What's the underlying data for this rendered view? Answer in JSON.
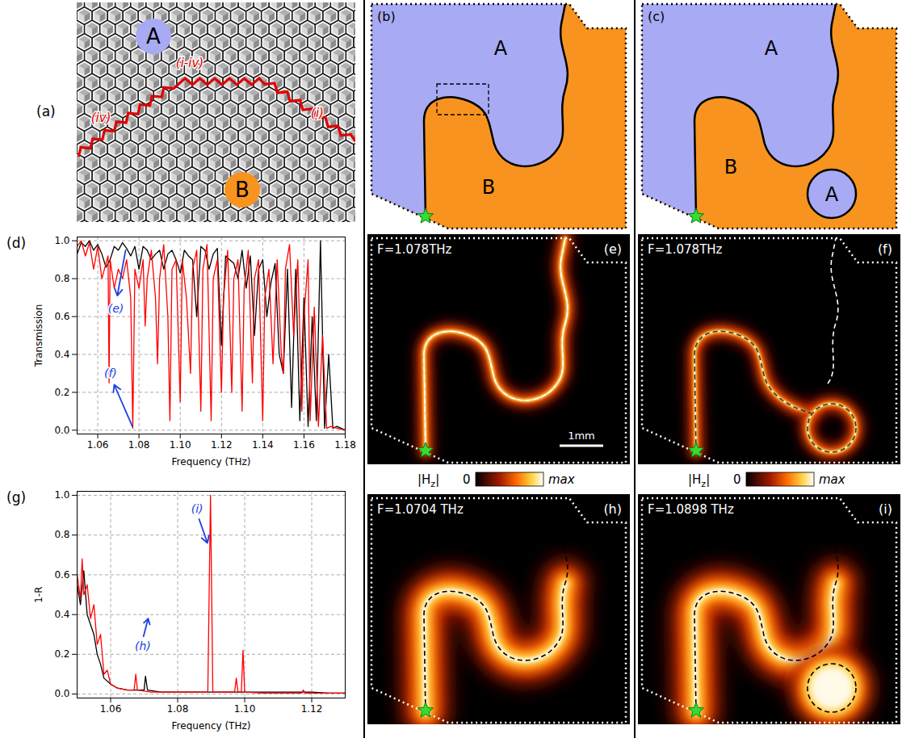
{
  "figure": {
    "a": {
      "letter": "(a)",
      "regions": [
        "A",
        "B"
      ],
      "path_labels": [
        "(iv)",
        "(i-iv)",
        "(i)"
      ]
    },
    "b": {
      "letter": "(b)",
      "regions": [
        "A",
        "B"
      ]
    },
    "c": {
      "letter": "(c)",
      "regions": [
        "A",
        "B",
        "A"
      ]
    },
    "e": {
      "letter": "(e)",
      "frequency_label": "F=1.078THz",
      "scale_bar": "1mm"
    },
    "f": {
      "letter": "(f)",
      "frequency_label": "F=1.078THz"
    },
    "h": {
      "letter": "(h)",
      "frequency_label": "F=1.0704 THz"
    },
    "i": {
      "letter": "(i)",
      "frequency_label": "F=1.0898 THz"
    },
    "colorbar": {
      "label": "|H",
      "subscript": "z",
      "label_end": "|",
      "min_label": "0",
      "max_label": "max"
    }
  },
  "chart_data": [
    {
      "letter": "(d)",
      "type": "line",
      "xlabel": "Frequency (THz)",
      "ylabel": "Transmission",
      "xlim": [
        1.05,
        1.18
      ],
      "xticks": [
        1.06,
        1.08,
        {
          "value": 1.1,
          "label": "1.10"
        },
        1.12,
        1.14,
        1.16,
        1.18
      ],
      "ylim": [
        -0.02,
        1.02
      ],
      "yticks": [
        {
          "value": 0,
          "label": "0.0"
        },
        {
          "value": 0.2,
          "label": "0.2"
        },
        {
          "value": 0.4,
          "label": "0.4"
        },
        {
          "value": 0.6,
          "label": "0.6"
        },
        {
          "value": 0.8,
          "label": "0.8"
        },
        {
          "value": 1,
          "label": "1.0"
        }
      ],
      "grid": true,
      "series": [
        {
          "color": "#000000",
          "x": [
            1.05,
            1.052,
            1.054,
            1.056,
            1.058,
            1.06,
            1.062,
            1.064,
            1.066,
            1.068,
            1.07,
            1.072,
            1.074,
            1.076,
            1.078,
            1.08,
            1.082,
            1.084,
            1.086,
            1.088,
            1.09,
            1.092,
            1.094,
            1.096,
            1.098,
            1.1,
            1.102,
            1.104,
            1.106,
            1.108,
            1.11,
            1.112,
            1.114,
            1.116,
            1.118,
            1.12,
            1.122,
            1.124,
            1.126,
            1.128,
            1.13,
            1.132,
            1.134,
            1.136,
            1.138,
            1.14,
            1.142,
            1.144,
            1.146,
            1.148,
            1.15,
            1.152,
            1.154,
            1.156,
            1.158,
            1.16,
            1.162,
            1.164,
            1.166,
            1.168,
            1.17,
            1.172,
            1.174,
            1.176,
            1.178,
            1.18
          ],
          "values": [
            0.93,
            0.99,
            0.97,
            1.0,
            0.95,
            0.98,
            0.93,
            0.86,
            0.9,
            0.97,
            0.95,
            0.99,
            0.96,
            0.92,
            0.97,
            0.85,
            0.97,
            0.95,
            0.9,
            0.93,
            0.95,
            0.85,
            0.93,
            0.95,
            0.9,
            0.83,
            0.95,
            0.92,
            0.9,
            0.6,
            0.97,
            0.95,
            0.85,
            0.93,
            0.96,
            0.45,
            0.92,
            0.9,
            0.88,
            0.8,
            0.95,
            0.75,
            0.92,
            0.5,
            0.85,
            0.9,
            0.6,
            0.78,
            0.88,
            0.4,
            0.3,
            0.85,
            0.12,
            0.85,
            0.05,
            0.7,
            0.02,
            0.6,
            0.05,
            1.0,
            0.01,
            0.4,
            0.01,
            0.02,
            0.01,
            0.0
          ]
        },
        {
          "color": "#ff0000",
          "x": [
            1.05,
            1.052,
            1.054,
            1.056,
            1.058,
            1.06,
            1.062,
            1.064,
            1.065,
            1.0655,
            1.066,
            1.068,
            1.07,
            1.072,
            1.074,
            1.076,
            1.077,
            1.078,
            1.08,
            1.082,
            1.083,
            1.084,
            1.086,
            1.088,
            1.089,
            1.09,
            1.092,
            1.094,
            1.095,
            1.096,
            1.098,
            1.1,
            1.101,
            1.103,
            1.105,
            1.106,
            1.108,
            1.11,
            1.111,
            1.113,
            1.115,
            1.116,
            1.118,
            1.12,
            1.121,
            1.123,
            1.125,
            1.126,
            1.128,
            1.13,
            1.131,
            1.133,
            1.135,
            1.136,
            1.138,
            1.14,
            1.141,
            1.143,
            1.145,
            1.147,
            1.149,
            1.15,
            1.151,
            1.153,
            1.155,
            1.157,
            1.159,
            1.16,
            1.162,
            1.163,
            1.165,
            1.167,
            1.169,
            1.171,
            1.173,
            1.176,
            1.18
          ],
          "values": [
            0.97,
            1.0,
            0.92,
            0.99,
            0.85,
            0.97,
            0.8,
            0.88,
            0.92,
            0.25,
            0.9,
            0.75,
            0.85,
            0.8,
            0.9,
            0.7,
            0.01,
            0.85,
            0.75,
            0.9,
            0.55,
            0.8,
            0.95,
            0.7,
            0.35,
            0.8,
            0.98,
            0.6,
            0.05,
            0.85,
            0.9,
            0.15,
            0.9,
            0.7,
            0.3,
            0.85,
            0.95,
            0.1,
            0.85,
            0.98,
            0.05,
            0.8,
            0.9,
            0.2,
            0.7,
            0.95,
            0.2,
            0.8,
            0.9,
            0.1,
            0.75,
            0.95,
            0.25,
            0.8,
            0.9,
            0.05,
            0.7,
            0.85,
            0.35,
            0.9,
            0.4,
            0.3,
            0.85,
            0.98,
            0.5,
            0.9,
            0.1,
            0.6,
            0.9,
            0.05,
            0.65,
            0.02,
            0.5,
            0.01,
            0.02,
            0.01,
            0.0
          ]
        }
      ],
      "annotations": [
        {
          "text": "(e)",
          "x": 1.0688,
          "y": 0.64,
          "arrow": [
            [
              1.0735,
              0.95
            ],
            [
              1.0695,
              0.71
            ]
          ],
          "color": "#2040e0"
        },
        {
          "text": "(f)",
          "x": 1.0662,
          "y": 0.3,
          "arrow": [
            [
              1.0768,
              0.02
            ],
            [
              1.068,
              0.24
            ]
          ],
          "color": "#2040e0"
        }
      ]
    },
    {
      "letter": "(g)",
      "type": "line",
      "xlabel": "Frequency (THz)",
      "ylabel": "1-R",
      "xlim": [
        1.05,
        1.13
      ],
      "xticks": [
        1.06,
        1.08,
        {
          "value": 1.1,
          "label": "1.10"
        },
        1.12
      ],
      "ylim": [
        -0.02,
        1.02
      ],
      "yticks": [
        {
          "value": 0,
          "label": "0.0"
        },
        {
          "value": 0.2,
          "label": "0.2"
        },
        {
          "value": 0.4,
          "label": "0.4"
        },
        {
          "value": 0.6,
          "label": "0.6"
        },
        {
          "value": 0.8,
          "label": "0.8"
        },
        {
          "value": 1,
          "label": "1.0"
        }
      ],
      "grid": true,
      "series": [
        {
          "color": "#000000",
          "x": [
            1.05,
            1.051,
            1.052,
            1.053,
            1.054,
            1.055,
            1.056,
            1.057,
            1.058,
            1.06,
            1.062,
            1.065,
            1.068,
            1.07,
            1.0704,
            1.071,
            1.075,
            1.08,
            1.085,
            1.09,
            1.095,
            1.1,
            1.105,
            1.11,
            1.115,
            1.12,
            1.125,
            1.13
          ],
          "values": [
            0.55,
            0.45,
            0.62,
            0.4,
            0.35,
            0.3,
            0.2,
            0.15,
            0.08,
            0.05,
            0.03,
            0.02,
            0.02,
            0.02,
            0.09,
            0.02,
            0.01,
            0.01,
            0.01,
            0.01,
            0.01,
            0.01,
            0.01,
            0.01,
            0.01,
            0.01,
            0.005,
            0.005
          ]
        },
        {
          "color": "#ff0000",
          "x": [
            1.05,
            1.051,
            1.0515,
            1.052,
            1.053,
            1.054,
            1.055,
            1.056,
            1.057,
            1.058,
            1.059,
            1.06,
            1.062,
            1.065,
            1.067,
            1.0675,
            1.068,
            1.072,
            1.076,
            1.08,
            1.085,
            1.089,
            1.0898,
            1.0905,
            1.095,
            1.097,
            1.0975,
            1.098,
            1.099,
            1.0995,
            1.1,
            1.105,
            1.11,
            1.117,
            1.1175,
            1.118,
            1.125,
            1.13
          ],
          "values": [
            0.6,
            0.48,
            0.68,
            0.5,
            0.55,
            0.38,
            0.45,
            0.25,
            0.3,
            0.1,
            0.12,
            0.05,
            0.03,
            0.02,
            0.02,
            0.1,
            0.02,
            0.01,
            0.01,
            0.01,
            0.01,
            0.01,
            1.0,
            0.01,
            0.01,
            0.01,
            0.08,
            0.01,
            0.01,
            0.22,
            0.01,
            0.005,
            0.005,
            0.005,
            0.02,
            0.005,
            0.005,
            0.005
          ]
        }
      ],
      "annotations": [
        {
          "text": "(i)",
          "x": 1.0858,
          "y": 0.93,
          "arrow": [
            [
              1.0864,
              0.88
            ],
            [
              1.0889,
              0.76
            ]
          ],
          "color": "#2040e0"
        },
        {
          "text": "(h)",
          "x": 1.0696,
          "y": 0.24,
          "arrow": [
            [
              1.0698,
              0.29
            ],
            [
              1.0712,
              0.38
            ]
          ],
          "color": "#2040e0"
        }
      ]
    }
  ]
}
